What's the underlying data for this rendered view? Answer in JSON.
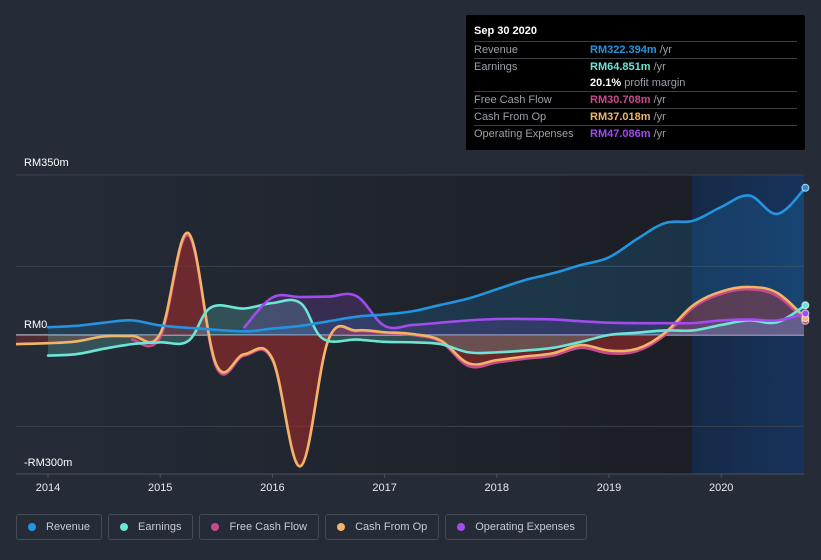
{
  "tooltip": {
    "date": "Sep 30 2020",
    "rows": [
      {
        "label": "Revenue",
        "value": "RM322.394m",
        "unit": " /yr",
        "color": "#2394df"
      },
      {
        "label": "Earnings",
        "value": "RM64.851m",
        "unit": " /yr",
        "color": "#6ce5d4"
      },
      {
        "label": "",
        "value": "20.1%",
        "unit": " profit margin",
        "color": "#ffffff"
      },
      {
        "label": "Free Cash Flow",
        "value": "RM30.708m",
        "unit": " /yr",
        "color": "#c94a8c"
      },
      {
        "label": "Cash From Op",
        "value": "RM37.018m",
        "unit": " /yr",
        "color": "#f2b567"
      },
      {
        "label": "Operating Expenses",
        "value": "RM47.086m",
        "unit": " /yr",
        "color": "#a24bf0"
      }
    ]
  },
  "legend": [
    {
      "label": "Revenue",
      "color": "#2394df"
    },
    {
      "label": "Earnings",
      "color": "#6ce5d4"
    },
    {
      "label": "Free Cash Flow",
      "color": "#c94a8c"
    },
    {
      "label": "Cash From Op",
      "color": "#f2b567"
    },
    {
      "label": "Operating Expenses",
      "color": "#a24bf0"
    }
  ],
  "chart_data": {
    "type": "line",
    "title": "",
    "xlabel": "",
    "ylabel": "",
    "currency": "RM",
    "ylim": [
      -300,
      350
    ],
    "xlim": [
      2013.7,
      2020.75
    ],
    "y_tick_labels": [
      {
        "value": 350,
        "label": "RM350m"
      },
      {
        "value": 0,
        "label": "RM0"
      },
      {
        "value": -300,
        "label": "-RM300m"
      }
    ],
    "gridlines": [
      350,
      150,
      0,
      -200
    ],
    "x_ticks": [
      2014,
      2015,
      2016,
      2017,
      2018,
      2019,
      2020
    ],
    "x_tick_labels": [
      "2014",
      "2015",
      "2016",
      "2017",
      "2018",
      "2019",
      "2020"
    ],
    "forecast_region_start": 2019.74,
    "legend_position": "bottom",
    "series": [
      {
        "name": "Revenue",
        "color": "#2394df",
        "fill": true,
        "x": [
          2014.0,
          2014.25,
          2014.5,
          2014.75,
          2015.0,
          2015.35,
          2015.75,
          2016.0,
          2016.25,
          2016.5,
          2016.75,
          2017.0,
          2017.25,
          2017.5,
          2017.75,
          2018.0,
          2018.25,
          2018.5,
          2018.75,
          2019.0,
          2019.25,
          2019.5,
          2019.75,
          2020.0,
          2020.25,
          2020.5,
          2020.75
        ],
        "values": [
          17,
          20,
          27,
          32,
          21,
          14,
          8,
          14,
          20,
          30,
          40,
          45,
          52,
          66,
          80,
          100,
          120,
          135,
          153,
          170,
          210,
          245,
          250,
          280,
          305,
          265,
          322
        ]
      },
      {
        "name": "Earnings",
        "color": "#6ce5d4",
        "fill": true,
        "x": [
          2014.0,
          2014.25,
          2014.5,
          2014.75,
          2015.0,
          2015.25,
          2015.45,
          2015.75,
          2016.0,
          2016.25,
          2016.45,
          2016.75,
          2017.0,
          2017.25,
          2017.5,
          2017.75,
          2018.0,
          2018.25,
          2018.5,
          2018.75,
          2019.0,
          2019.25,
          2019.5,
          2019.75,
          2020.0,
          2020.25,
          2020.5,
          2020.75
        ],
        "values": [
          -45,
          -42,
          -30,
          -20,
          -16,
          -13,
          60,
          58,
          70,
          70,
          -8,
          -10,
          -15,
          -16,
          -20,
          -38,
          -38,
          -34,
          -28,
          -15,
          0,
          5,
          10,
          10,
          22,
          32,
          28,
          65
        ]
      },
      {
        "name": "Free Cash Flow",
        "color": "#c94a8c",
        "fill": true,
        "x": [
          2014.75,
          2015.0,
          2015.25,
          2015.5,
          2015.75,
          2016.0,
          2016.25,
          2016.5,
          2016.75,
          2017.0,
          2017.25,
          2017.5,
          2017.75,
          2018.0,
          2018.25,
          2018.5,
          2018.75,
          2019.0,
          2019.25,
          2019.5,
          2019.75,
          2020.0,
          2020.25,
          2020.5,
          2020.75
        ],
        "values": [
          -10,
          -5,
          218,
          -70,
          -45,
          -55,
          -287,
          -10,
          8,
          5,
          0,
          -15,
          -68,
          -60,
          -52,
          -45,
          -28,
          -40,
          -35,
          0,
          60,
          90,
          100,
          85,
          31
        ]
      },
      {
        "name": "Cash From Op",
        "color": "#f2b567",
        "fill": true,
        "x": [
          2013.7,
          2014.0,
          2014.25,
          2014.5,
          2014.75,
          2015.0,
          2015.25,
          2015.5,
          2015.75,
          2016.0,
          2016.25,
          2016.5,
          2016.75,
          2017.0,
          2017.25,
          2017.5,
          2017.75,
          2018.0,
          2018.25,
          2018.5,
          2018.75,
          2019.0,
          2019.25,
          2019.5,
          2019.75,
          2020.0,
          2020.25,
          2020.5,
          2020.75
        ],
        "values": [
          -20,
          -18,
          -14,
          -3,
          -2,
          3,
          223,
          -65,
          -42,
          -52,
          -287,
          -10,
          10,
          6,
          2,
          -12,
          -62,
          -55,
          -47,
          -40,
          -22,
          -34,
          -30,
          5,
          65,
          95,
          105,
          92,
          37
        ]
      },
      {
        "name": "Operating Expenses",
        "color": "#a24bf0",
        "fill": true,
        "x": [
          2015.75,
          2016.0,
          2016.25,
          2016.5,
          2016.75,
          2017.0,
          2017.25,
          2017.5,
          2017.75,
          2018.0,
          2018.25,
          2018.5,
          2018.75,
          2019.0,
          2019.25,
          2019.5,
          2019.75,
          2020.0,
          2020.25,
          2020.5,
          2020.75
        ],
        "values": [
          17,
          82,
          83,
          84,
          85,
          20,
          22,
          27,
          32,
          35,
          35,
          34,
          30,
          27,
          26,
          26,
          26,
          32,
          34,
          32,
          47
        ]
      }
    ]
  }
}
